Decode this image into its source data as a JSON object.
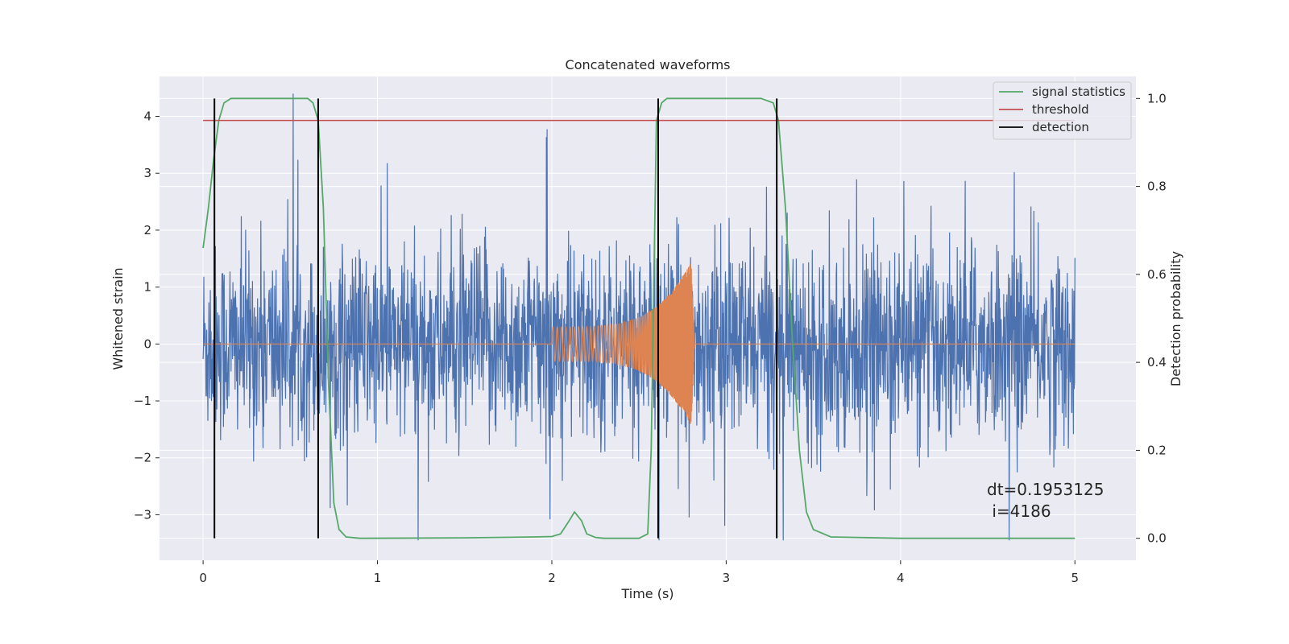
{
  "chart_data": {
    "type": "line",
    "title": "Concatenated waveforms",
    "xlabel": "Time (s)",
    "ylabel": "Whitened strain",
    "y2label": "Detection probability",
    "xlim": [
      -0.25,
      5.35
    ],
    "ylim": [
      -3.8,
      4.7
    ],
    "y2lim": [
      -0.05,
      1.05
    ],
    "xticks": [
      0,
      1,
      2,
      3,
      4,
      5
    ],
    "xtick_labels": [
      "0",
      "1",
      "2",
      "3",
      "4",
      "5"
    ],
    "yticks": [
      -3,
      -2,
      -1,
      0,
      1,
      2,
      3,
      4
    ],
    "ytick_labels": [
      "−3",
      "−2",
      "−1",
      "0",
      "1",
      "2",
      "3",
      "4"
    ],
    "y2ticks": [
      0.0,
      0.2,
      0.4,
      0.6,
      0.8,
      1.0
    ],
    "y2tick_labels": [
      "0.0",
      "0.2",
      "0.4",
      "0.6",
      "0.8",
      "1.0"
    ],
    "grid": true,
    "legend_position": "top-right",
    "legend": [
      "signal statistics",
      "threshold",
      "detection"
    ],
    "colors": {
      "strain": "#4c72b0",
      "waveform": "#dd8452",
      "signal": "#55a868",
      "threshold": "#c44e52",
      "detection": "#000000",
      "background": "#eaeaf2",
      "grid": "#ffffff"
    },
    "series": [
      {
        "name": "strain",
        "description_free": true,
        "x_range": [
          0,
          5
        ],
        "amplitude_envelope": 3.3,
        "axis": "left"
      },
      {
        "name": "waveform",
        "axis": "left",
        "chirp_start": 2.0,
        "chirp_peak": 2.8,
        "chirp_end": 2.82,
        "peak_amplitude": 1.45,
        "start_amplitude": 0.3
      },
      {
        "name": "signal statistics",
        "axis": "right",
        "x": [
          0.0,
          0.03,
          0.06,
          0.09,
          0.12,
          0.16,
          0.2,
          0.6,
          0.63,
          0.66,
          0.69,
          0.72,
          0.75,
          0.78,
          0.82,
          0.9,
          1.5,
          1.9,
          2.0,
          2.05,
          2.1,
          2.13,
          2.17,
          2.2,
          2.25,
          2.3,
          2.5,
          2.55,
          2.57,
          2.6,
          2.63,
          2.66,
          2.7,
          3.2,
          3.27,
          3.3,
          3.34,
          3.38,
          3.42,
          3.46,
          3.5,
          3.6,
          4.0,
          5.0
        ],
        "y": [
          0.66,
          0.75,
          0.86,
          0.95,
          0.99,
          1.0,
          1.0,
          1.0,
          0.99,
          0.95,
          0.75,
          0.35,
          0.08,
          0.02,
          0.003,
          0.0,
          0.001,
          0.003,
          0.004,
          0.01,
          0.04,
          0.06,
          0.04,
          0.01,
          0.002,
          0.0,
          0.0,
          0.01,
          0.2,
          0.95,
          0.99,
          1.0,
          1.0,
          1.0,
          0.99,
          0.95,
          0.75,
          0.45,
          0.2,
          0.06,
          0.02,
          0.003,
          0.0,
          0.0
        ]
      },
      {
        "name": "threshold",
        "axis": "right",
        "x": [
          0,
          5
        ],
        "y": [
          0.95,
          0.95
        ]
      }
    ],
    "detections": [
      0.065,
      0.66,
      2.61,
      3.29
    ],
    "annotation": {
      "line1": "dt=0.1953125",
      "line2": " i=4186"
    }
  }
}
